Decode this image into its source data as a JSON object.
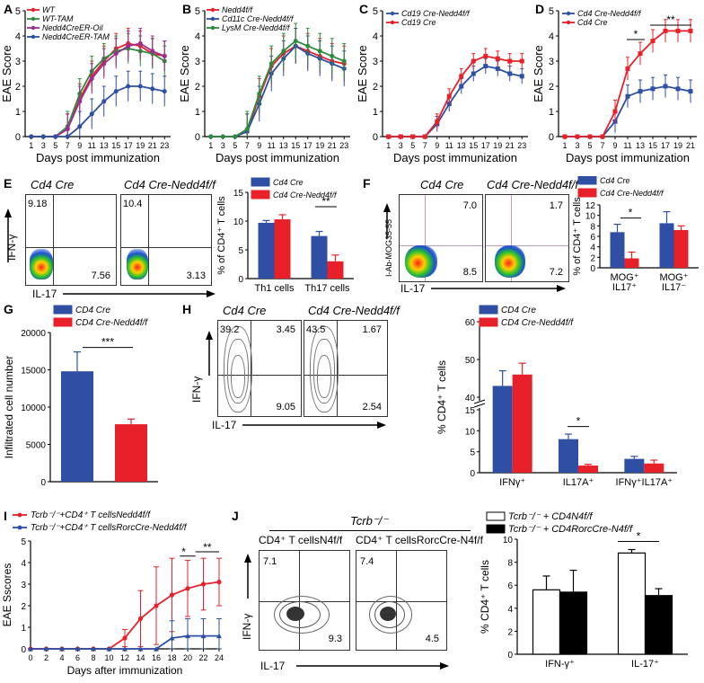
{
  "panels": {
    "A": {
      "letter": "A",
      "ylabel": "EAE Score",
      "xlabel": "Days post immunization",
      "legend": [
        "WT",
        "WT-TAM",
        "Nedd4CreER-Oil",
        "Nedd4CreER-TAM"
      ]
    },
    "B": {
      "letter": "B",
      "ylabel": "EAE Score",
      "xlabel": "Days post immunization",
      "legend": [
        "Nedd4f/f",
        "Cd11c Cre-Nedd4f/f",
        "LysM Cre-Nedd4f/f"
      ]
    },
    "C": {
      "letter": "C",
      "ylabel": "EAE Score",
      "xlabel": "Days post immunization",
      "legend": [
        "Cd19 Cre-Nedd4f/f",
        "Cd19 Cre"
      ]
    },
    "D": {
      "letter": "D",
      "ylabel": "EAE Score",
      "xlabel": "Days post immunization",
      "legend": [
        "Cd4 Cre-Nedd4f/f",
        "Cd4 Cre"
      ],
      "sig": [
        "*",
        "**"
      ]
    },
    "E": {
      "letter": "E",
      "titles": [
        "Cd4 Cre",
        "Cd4 Cre-Nedd4f/f"
      ],
      "y": "IFN-γ",
      "x": "IL-17",
      "quads": [
        [
          "9.18",
          "7.56"
        ],
        [
          "10.4",
          "3.13"
        ]
      ],
      "legend": [
        "Cd4 Cre",
        "Cd4 Cre-Nedd4f/f"
      ],
      "ylabel": "% of CD4⁺ T cells",
      "cats": [
        "Th1 cells",
        "Th17 cells"
      ],
      "sig": "**"
    },
    "F": {
      "letter": "F",
      "titles": [
        "Cd4 Cre",
        "Cd4 Cre-Nedd4f/f"
      ],
      "y": "I-Ab-MOG35-55",
      "x": "IL-17",
      "quads": [
        [
          "7.0",
          "8.5"
        ],
        [
          "1.7",
          "7.2"
        ]
      ],
      "legend": [
        "Cd4 Cre",
        "Cd4 Cre-Nedd4f/f"
      ],
      "ylabel": "% of CD4⁺ T cells",
      "cats": [
        "MOG⁺ IL17⁺",
        "MOG⁺ IL17⁻"
      ],
      "sig": "*"
    },
    "G": {
      "letter": "G",
      "legend": [
        "CD4 Cre",
        "CD4 Cre-Nedd4f/f"
      ],
      "ylabel": "Infiltrated cell number",
      "sig": "***"
    },
    "H": {
      "letter": "H",
      "titles": [
        "Cd4 Cre",
        "Cd4 Cre-Nedd4f/f"
      ],
      "y": "IFN-γ",
      "x": "IL-17",
      "quads": [
        [
          "39.2",
          "3.45",
          "9.05"
        ],
        [
          "43.5",
          "1.67",
          "2.54"
        ]
      ],
      "legend": [
        "CD4 Cre",
        "CD4 Cre-Nedd4f/f"
      ],
      "ylabel": "% CD4⁺ T cells",
      "cats": [
        "IFNγ⁺",
        "IL17A⁺",
        "IFNγ⁺IL17A⁺"
      ],
      "sig": "*"
    },
    "I": {
      "letter": "I",
      "legend": [
        "Tcrb⁻/⁻+CD4⁺ T cellsNedd4f/f",
        "Tcrb⁻/⁻+CD4⁺ T cellsRorcCre-Nedd4f/f"
      ],
      "ylabel": "EAE Sscores",
      "xlabel": "Days after immunization",
      "sig": [
        "*",
        "**"
      ]
    },
    "J": {
      "letter": "J",
      "header": "Tcrb⁻/⁻",
      "titles": [
        "CD4⁺ T cellsN4f/f",
        "CD4⁺ T cellsRorcCre-N4f/f"
      ],
      "y": "IFN-γ",
      "x": "IL-17",
      "quads": [
        [
          "7.1",
          "9.3"
        ],
        [
          "7.4",
          "4.5"
        ]
      ],
      "legend": [
        "Tcrb⁻/⁻ + CD4N4f/f",
        "Tcrb⁻/⁻ + CD4RorcCre-N4f/f"
      ],
      "ylabel": "% CD4⁺ T cells",
      "cats": [
        "IFN-γ⁺",
        "IL-17⁺"
      ],
      "sig": "*"
    }
  },
  "colors": {
    "blue": "#2e4fa3",
    "red": "#e8202a",
    "green": "#2e8b3d",
    "purple": "#9b2f8f",
    "black": "#000000",
    "white": "#ffffff"
  },
  "chart_data": [
    {
      "type": "line",
      "panel": "A",
      "ylim": [
        0,
        5
      ],
      "x": [
        1,
        3,
        5,
        7,
        9,
        11,
        13,
        15,
        17,
        19,
        21,
        23
      ],
      "xticks": [
        "1",
        "3",
        "5",
        "7",
        "9",
        "11",
        "13",
        "15",
        "17",
        "19",
        "21",
        "23"
      ],
      "series": [
        {
          "name": "WT",
          "values": [
            0,
            0,
            0,
            0.3,
            1.5,
            2.4,
            3.0,
            3.5,
            3.7,
            3.6,
            3.3,
            3.2
          ]
        },
        {
          "name": "WT-TAM",
          "values": [
            0,
            0,
            0,
            0.4,
            1.7,
            2.6,
            3.1,
            3.4,
            3.5,
            3.4,
            3.3,
            3.0
          ]
        },
        {
          "name": "Nedd4CreER-Oil",
          "values": [
            0,
            0,
            0,
            0.3,
            1.4,
            2.3,
            2.9,
            3.3,
            3.6,
            3.7,
            3.4,
            3.2
          ]
        },
        {
          "name": "Nedd4CreER-TAM",
          "values": [
            0,
            0,
            0,
            0,
            0.4,
            0.9,
            1.4,
            1.8,
            2.0,
            2.0,
            1.9,
            1.8
          ]
        }
      ]
    },
    {
      "type": "line",
      "panel": "B",
      "ylim": [
        0,
        5
      ],
      "x": [
        1,
        3,
        5,
        7,
        9,
        11,
        13,
        15,
        17,
        19,
        21,
        23
      ],
      "xticks": [
        "1",
        "3",
        "5",
        "7",
        "9",
        "11",
        "13",
        "15",
        "17",
        "19",
        "21",
        "23"
      ],
      "series": [
        {
          "name": "Nedd4f/f",
          "values": [
            0,
            0,
            0,
            0.2,
            1.6,
            2.8,
            3.3,
            3.6,
            3.4,
            3.2,
            3.0,
            2.9
          ]
        },
        {
          "name": "Cd11c Cre-Nedd4f/f",
          "values": [
            0,
            0,
            0,
            0.2,
            1.3,
            2.5,
            3.1,
            3.6,
            3.3,
            3.1,
            2.9,
            2.7
          ]
        },
        {
          "name": "LysM Cre-Nedd4f/f",
          "values": [
            0,
            0,
            0,
            0.3,
            1.7,
            2.9,
            3.4,
            3.8,
            3.6,
            3.4,
            3.2,
            3.0
          ]
        }
      ]
    },
    {
      "type": "line",
      "panel": "C",
      "ylim": [
        0,
        5
      ],
      "x": [
        1,
        3,
        5,
        7,
        9,
        11,
        13,
        15,
        17,
        19,
        21,
        23
      ],
      "xticks": [
        "1",
        "3",
        "5",
        "7",
        "9",
        "11",
        "13",
        "15",
        "17",
        "19",
        "21",
        "23"
      ],
      "series": [
        {
          "name": "Cd19 Cre-Nedd4f/f",
          "values": [
            0,
            0,
            0,
            0,
            0.5,
            1.3,
            2.0,
            2.5,
            2.8,
            2.7,
            2.5,
            2.4
          ]
        },
        {
          "name": "Cd19 Cre",
          "values": [
            0,
            0,
            0,
            0,
            0.6,
            1.6,
            2.4,
            3.0,
            3.2,
            3.1,
            3.0,
            3.0
          ]
        }
      ]
    },
    {
      "type": "line",
      "panel": "D",
      "ylim": [
        0,
        5
      ],
      "x": [
        1,
        3,
        5,
        7,
        9,
        11,
        13,
        15,
        17,
        19,
        21
      ],
      "xticks": [
        "1",
        "3",
        "5",
        "7",
        "9",
        "11",
        "13",
        "15",
        "17",
        "19",
        "21"
      ],
      "series": [
        {
          "name": "Cd4 Cre-Nedd4f/f",
          "values": [
            0,
            0,
            0,
            0,
            0.6,
            1.6,
            1.8,
            1.9,
            2.0,
            1.9,
            1.8
          ]
        },
        {
          "name": "Cd4 Cre",
          "values": [
            0,
            0,
            0,
            0,
            1.0,
            2.7,
            3.3,
            3.8,
            4.2,
            4.2,
            4.2
          ]
        }
      ]
    },
    {
      "type": "bar",
      "panel": "E",
      "ylim": [
        0,
        15
      ],
      "yticks": [
        "0",
        "5",
        "10",
        "15"
      ],
      "categories": [
        "Th1 cells",
        "Th17 cells"
      ],
      "series": [
        {
          "name": "Cd4 Cre",
          "values": [
            9.7,
            7.4
          ],
          "err": [
            0.4,
            0.8
          ]
        },
        {
          "name": "Cd4 Cre-Nedd4f/f",
          "values": [
            10.3,
            3.0
          ],
          "err": [
            0.8,
            1.1
          ]
        }
      ]
    },
    {
      "type": "bar",
      "panel": "F",
      "ylim": [
        0,
        12
      ],
      "yticks": [
        "0",
        "2",
        "4",
        "6",
        "8",
        "10",
        "12"
      ],
      "categories": [
        "MOG⁺ IL17⁺",
        "MOG⁺ IL17⁻"
      ],
      "series": [
        {
          "name": "Cd4 Cre",
          "values": [
            6.8,
            8.5
          ],
          "err": [
            1.5,
            2.2
          ]
        },
        {
          "name": "Cd4 Cre-Nedd4f/f",
          "values": [
            1.8,
            7.2
          ],
          "err": [
            1.2,
            0.8
          ]
        }
      ]
    },
    {
      "type": "bar",
      "panel": "G",
      "ylim": [
        0,
        20000
      ],
      "yticks": [
        "0",
        "5000",
        "10000",
        "15000",
        "20000"
      ],
      "categories": [
        ""
      ],
      "series": [
        {
          "name": "CD4 Cre",
          "values": [
            14800
          ],
          "err": [
            2600
          ]
        },
        {
          "name": "CD4 Cre-Nedd4f/f",
          "values": [
            7700
          ],
          "err": [
            700
          ]
        }
      ]
    },
    {
      "type": "bar",
      "panel": "H",
      "ylim": [
        0,
        60
      ],
      "yticks": [
        "0",
        "5",
        "10",
        "15",
        "40",
        "50",
        "60"
      ],
      "categories": [
        "IFNγ⁺",
        "IL17A⁺",
        "IFNγ⁺IL17A⁺"
      ],
      "series": [
        {
          "name": "CD4 Cre",
          "values": [
            43,
            8,
            3.3
          ],
          "err": [
            4,
            1.2,
            0.6
          ]
        },
        {
          "name": "CD4 Cre-Nedd4f/f",
          "values": [
            46,
            1.7,
            2.2
          ],
          "err": [
            3,
            0.3,
            0.8
          ]
        }
      ]
    },
    {
      "type": "line",
      "panel": "I",
      "ylim": [
        0,
        5
      ],
      "yticks": [
        "0",
        "1",
        "2",
        "3",
        "4",
        "5"
      ],
      "x": [
        0,
        2,
        4,
        6,
        8,
        10,
        12,
        14,
        16,
        18,
        20,
        22,
        24
      ],
      "xticks": [
        "0",
        "2",
        "4",
        "6",
        "8",
        "10",
        "12",
        "14",
        "16",
        "18",
        "20",
        "22",
        "24"
      ],
      "series": [
        {
          "name": "Tcrb⁻/⁻+CD4⁺ T cellsNedd4f/f",
          "values": [
            0,
            0,
            0,
            0,
            0,
            0,
            0.5,
            1.4,
            2.0,
            2.5,
            2.8,
            3.0,
            3.1
          ]
        },
        {
          "name": "Tcrb⁻/⁻+CD4⁺ T cellsRorcCre-Nedd4f/f",
          "values": [
            0,
            0,
            0,
            0,
            0,
            0,
            0,
            0,
            0,
            0.5,
            0.6,
            0.6,
            0.6
          ]
        }
      ]
    },
    {
      "type": "bar",
      "panel": "J",
      "ylim": [
        0,
        10
      ],
      "yticks": [
        "0",
        "2",
        "4",
        "6",
        "8",
        "10"
      ],
      "categories": [
        "IFN-γ⁺",
        "IL-17⁺"
      ],
      "series": [
        {
          "name": "Tcrb⁻/⁻ + CD4N4f/f",
          "values": [
            5.6,
            8.8
          ],
          "err": [
            1.2,
            0.3
          ]
        },
        {
          "name": "Tcrb⁻/⁻ + CD4RorcCre-N4f/f",
          "values": [
            5.4,
            5.1
          ],
          "err": [
            1.9,
            0.6
          ]
        }
      ]
    }
  ]
}
